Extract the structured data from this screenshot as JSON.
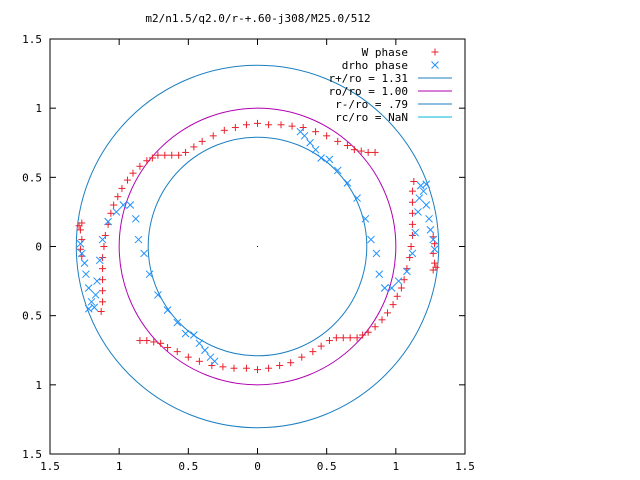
{
  "chart_data": {
    "type": "scatter",
    "title": "m2/n1.5/q2.0/r-+.60-j308/M25.0/512",
    "xlabel": "",
    "ylabel": "",
    "xlim": [
      -1.5,
      1.5
    ],
    "ylim": [
      -1.5,
      1.5
    ],
    "grid": false,
    "legend_position": "top-right",
    "x_ticks": [
      {
        "value": -1.5,
        "label": "1.5"
      },
      {
        "value": -1.0,
        "label": "1"
      },
      {
        "value": -0.5,
        "label": "0.5"
      },
      {
        "value": 0,
        "label": "0"
      },
      {
        "value": 0.5,
        "label": "0.5"
      },
      {
        "value": 1.0,
        "label": "1"
      },
      {
        "value": 1.5,
        "label": "1.5"
      }
    ],
    "y_ticks": [
      {
        "value": 1.5,
        "label": "1.5"
      },
      {
        "value": 1.0,
        "label": "1"
      },
      {
        "value": 0.5,
        "label": "0.5"
      },
      {
        "value": 0,
        "label": "0"
      },
      {
        "value": -0.5,
        "label": "0.5"
      },
      {
        "value": -1.0,
        "label": "1"
      },
      {
        "value": -1.5,
        "label": "1.5"
      }
    ],
    "legend": [
      {
        "label": "W phase",
        "symbol": "plus",
        "color": "#e8202c"
      },
      {
        "label": "drho phase",
        "symbol": "cross",
        "color": "#1e90ff"
      },
      {
        "label": "r+/ro = 1.31",
        "symbol": "line",
        "color": "#1c7fc0"
      },
      {
        "label": "ro/ro = 1.00",
        "symbol": "line",
        "color": "#b000b0"
      },
      {
        "label": "r-/ro = .79",
        "symbol": "line",
        "color": "#1c7fc0"
      },
      {
        "label": "rc/ro = NaN",
        "symbol": "line",
        "color": "#00b8d8"
      }
    ],
    "circles": [
      {
        "name": "r+/ro",
        "radius": 1.31,
        "color": "#1c7fc0"
      },
      {
        "name": "ro/ro",
        "radius": 1.0,
        "color": "#b000b0"
      },
      {
        "name": "r-/ro",
        "radius": 0.79,
        "color": "#1c7fc0"
      }
    ],
    "series": [
      {
        "name": "W phase",
        "color": "#e8202c",
        "marker": "plus",
        "points": [
          [
            0.85,
            0.68
          ],
          [
            0.8,
            0.68
          ],
          [
            0.75,
            0.69
          ],
          [
            0.7,
            0.7
          ],
          [
            0.65,
            0.73
          ],
          [
            0.58,
            0.76
          ],
          [
            0.5,
            0.8
          ],
          [
            0.42,
            0.83
          ],
          [
            0.33,
            0.86
          ],
          [
            0.25,
            0.87
          ],
          [
            0.17,
            0.88
          ],
          [
            0.08,
            0.88
          ],
          [
            0.0,
            0.89
          ],
          [
            -0.08,
            0.88
          ],
          [
            -0.16,
            0.86
          ],
          [
            -0.24,
            0.84
          ],
          [
            -0.32,
            0.8
          ],
          [
            -0.4,
            0.76
          ],
          [
            -0.46,
            0.72
          ],
          [
            -0.52,
            0.68
          ],
          [
            -0.57,
            0.66
          ],
          [
            -0.62,
            0.66
          ],
          [
            -0.67,
            0.66
          ],
          [
            -0.72,
            0.66
          ],
          [
            -0.76,
            0.64
          ],
          [
            -0.8,
            0.62
          ],
          [
            -0.85,
            0.58
          ],
          [
            -0.9,
            0.53
          ],
          [
            -0.94,
            0.48
          ],
          [
            -0.98,
            0.42
          ],
          [
            -1.01,
            0.36
          ],
          [
            -1.04,
            0.3
          ],
          [
            -1.06,
            0.24
          ],
          [
            -1.08,
            0.16
          ],
          [
            -1.1,
            0.08
          ],
          [
            -1.11,
            0.0
          ],
          [
            -1.12,
            -0.08
          ],
          [
            -1.12,
            -0.16
          ],
          [
            -1.12,
            -0.24
          ],
          [
            -1.12,
            -0.32
          ],
          [
            -1.12,
            -0.4
          ],
          [
            -1.13,
            -0.47
          ],
          [
            -1.27,
            0.17
          ],
          [
            -1.29,
            0.15
          ],
          [
            -1.28,
            0.12
          ],
          [
            -1.27,
            0.05
          ],
          [
            -1.28,
            -0.02
          ],
          [
            -1.27,
            -0.07
          ],
          [
            -0.85,
            -0.68
          ],
          [
            -0.8,
            -0.68
          ],
          [
            -0.75,
            -0.69
          ],
          [
            -0.7,
            -0.7
          ],
          [
            -0.65,
            -0.73
          ],
          [
            -0.58,
            -0.76
          ],
          [
            -0.5,
            -0.8
          ],
          [
            -0.42,
            -0.83
          ],
          [
            -0.33,
            -0.86
          ],
          [
            -0.25,
            -0.87
          ],
          [
            -0.17,
            -0.88
          ],
          [
            -0.08,
            -0.88
          ],
          [
            0.0,
            -0.89
          ],
          [
            0.08,
            -0.88
          ],
          [
            0.16,
            -0.86
          ],
          [
            0.24,
            -0.84
          ],
          [
            0.32,
            -0.8
          ],
          [
            0.4,
            -0.76
          ],
          [
            0.46,
            -0.72
          ],
          [
            0.52,
            -0.68
          ],
          [
            0.57,
            -0.66
          ],
          [
            0.62,
            -0.66
          ],
          [
            0.67,
            -0.66
          ],
          [
            0.72,
            -0.66
          ],
          [
            0.76,
            -0.64
          ],
          [
            0.8,
            -0.62
          ],
          [
            0.85,
            -0.58
          ],
          [
            0.9,
            -0.53
          ],
          [
            0.94,
            -0.48
          ],
          [
            0.98,
            -0.42
          ],
          [
            1.01,
            -0.36
          ],
          [
            1.04,
            -0.3
          ],
          [
            1.06,
            -0.24
          ],
          [
            1.08,
            -0.16
          ],
          [
            1.1,
            -0.08
          ],
          [
            1.11,
            0.0
          ],
          [
            1.12,
            0.08
          ],
          [
            1.12,
            0.16
          ],
          [
            1.12,
            0.24
          ],
          [
            1.12,
            0.32
          ],
          [
            1.12,
            0.4
          ],
          [
            1.13,
            0.47
          ],
          [
            1.27,
            -0.17
          ],
          [
            1.29,
            -0.15
          ],
          [
            1.28,
            -0.12
          ],
          [
            1.27,
            -0.05
          ],
          [
            1.28,
            0.02
          ],
          [
            1.27,
            0.07
          ]
        ]
      },
      {
        "name": "drho phase",
        "color": "#1e90ff",
        "marker": "cross",
        "points": [
          [
            0.31,
            0.83
          ],
          [
            0.34,
            0.8
          ],
          [
            0.38,
            0.75
          ],
          [
            0.42,
            0.7
          ],
          [
            0.46,
            0.64
          ],
          [
            0.52,
            0.63
          ],
          [
            0.58,
            0.55
          ],
          [
            0.65,
            0.46
          ],
          [
            0.72,
            0.35
          ],
          [
            0.78,
            0.2
          ],
          [
            0.82,
            0.05
          ],
          [
            0.86,
            -0.05
          ],
          [
            0.88,
            -0.2
          ],
          [
            0.92,
            -0.3
          ],
          [
            0.97,
            -0.3
          ],
          [
            1.02,
            -0.25
          ],
          [
            1.08,
            -0.18
          ],
          [
            1.12,
            -0.05
          ],
          [
            1.14,
            0.1
          ],
          [
            1.16,
            0.25
          ],
          [
            1.17,
            0.35
          ],
          [
            1.18,
            0.44
          ],
          [
            1.2,
            0.4
          ],
          [
            1.22,
            0.3
          ],
          [
            1.24,
            0.2
          ],
          [
            1.25,
            0.12
          ],
          [
            1.27,
            0.05
          ],
          [
            1.28,
            -0.02
          ],
          [
            1.22,
            0.45
          ],
          [
            -0.31,
            -0.83
          ],
          [
            -0.34,
            -0.8
          ],
          [
            -0.38,
            -0.75
          ],
          [
            -0.42,
            -0.7
          ],
          [
            -0.46,
            -0.64
          ],
          [
            -0.52,
            -0.63
          ],
          [
            -0.58,
            -0.55
          ],
          [
            -0.65,
            -0.46
          ],
          [
            -0.72,
            -0.35
          ],
          [
            -0.78,
            -0.2
          ],
          [
            -0.82,
            -0.05
          ],
          [
            -0.86,
            0.05
          ],
          [
            -0.88,
            0.2
          ],
          [
            -0.92,
            0.3
          ],
          [
            -0.97,
            0.3
          ],
          [
            -1.02,
            0.25
          ],
          [
            -1.08,
            0.18
          ],
          [
            -1.12,
            0.05
          ],
          [
            -1.14,
            -0.1
          ],
          [
            -1.16,
            -0.25
          ],
          [
            -1.17,
            -0.35
          ],
          [
            -1.18,
            -0.44
          ],
          [
            -1.2,
            -0.4
          ],
          [
            -1.22,
            -0.3
          ],
          [
            -1.24,
            -0.2
          ],
          [
            -1.25,
            -0.12
          ],
          [
            -1.27,
            -0.05
          ],
          [
            -1.28,
            0.02
          ],
          [
            -1.22,
            -0.45
          ]
        ]
      }
    ]
  }
}
